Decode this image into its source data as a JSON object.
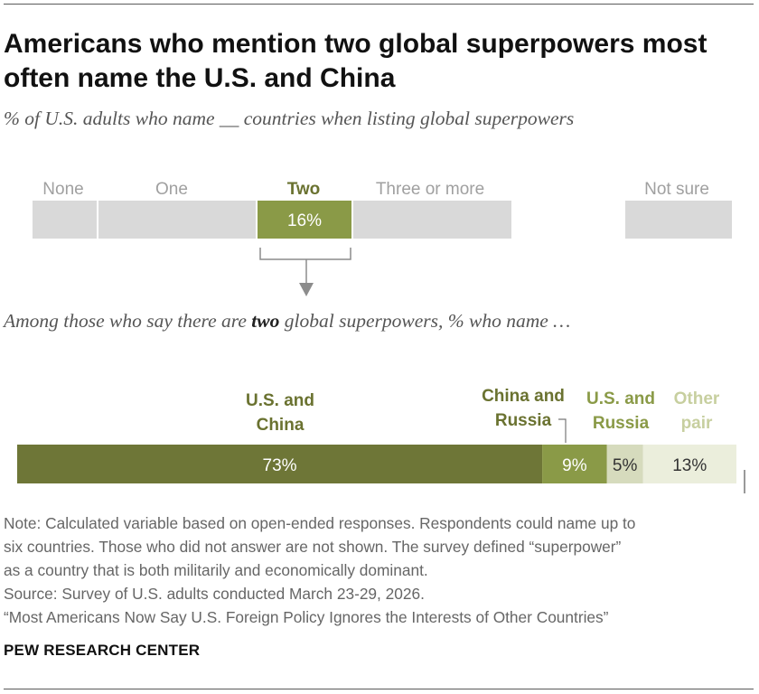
{
  "title_line1": "Americans who mention two global superpowers most",
  "title_line2": "often name the U.S. and China",
  "subtitle": "% of U.S. adults who name __ countries when listing global superpowers",
  "subtitle2_pre": "Among those who say there are ",
  "subtitle2_bold": "two",
  "subtitle2_post": " global superpowers, % who name …",
  "note_lines": [
    "Note: Calculated variable based on open-ended responses. Respondents could name up to",
    "six countries. Those who did not answer are not shown. The survey defined “superpower”",
    "as a country that is both militarily and economically dominant.",
    "Source: Survey of U.S. adults conducted March 23-29, 2026.",
    "“Most Americans Now Say U.S. Foreign Policy Ignores the Interests of Other Countries”"
  ],
  "source_logo": "PEW RESEARCH CENTER",
  "colors": {
    "gray": "#d9d9d9",
    "highlight": "#8a9a47",
    "dark_olive": "#6e7637",
    "olive": "#8a9a47",
    "light_olive": "#d6dbbd",
    "pale": "#ebeedc",
    "label_gray": "#a0a0a0",
    "label_dark": "#6a7230",
    "label_mid": "#8a9a47",
    "label_light": "#c7cf9f"
  },
  "chart_data": [
    {
      "type": "bar",
      "orientation": "horizontal-stacked",
      "categories": [
        "None",
        "One",
        "Two",
        "Three or more",
        "Not sure"
      ],
      "values": [
        null,
        null,
        16,
        null,
        null
      ],
      "value_labels": [
        "",
        "",
        "16%",
        "",
        ""
      ],
      "highlighted": "Two"
    },
    {
      "type": "bar",
      "orientation": "horizontal-stacked",
      "categories": [
        "U.S. and China",
        "China and Russia",
        "U.S. and Russia",
        "Other pair"
      ],
      "category_label_lines": [
        [
          "U.S. and",
          "China"
        ],
        [
          "China and",
          "Russia"
        ],
        [
          "U.S. and",
          "Russia"
        ],
        [
          "Other",
          "pair"
        ]
      ],
      "values": [
        73,
        9,
        5,
        13
      ],
      "value_labels": [
        "73%",
        "9%",
        "5%",
        "13%"
      ]
    }
  ]
}
